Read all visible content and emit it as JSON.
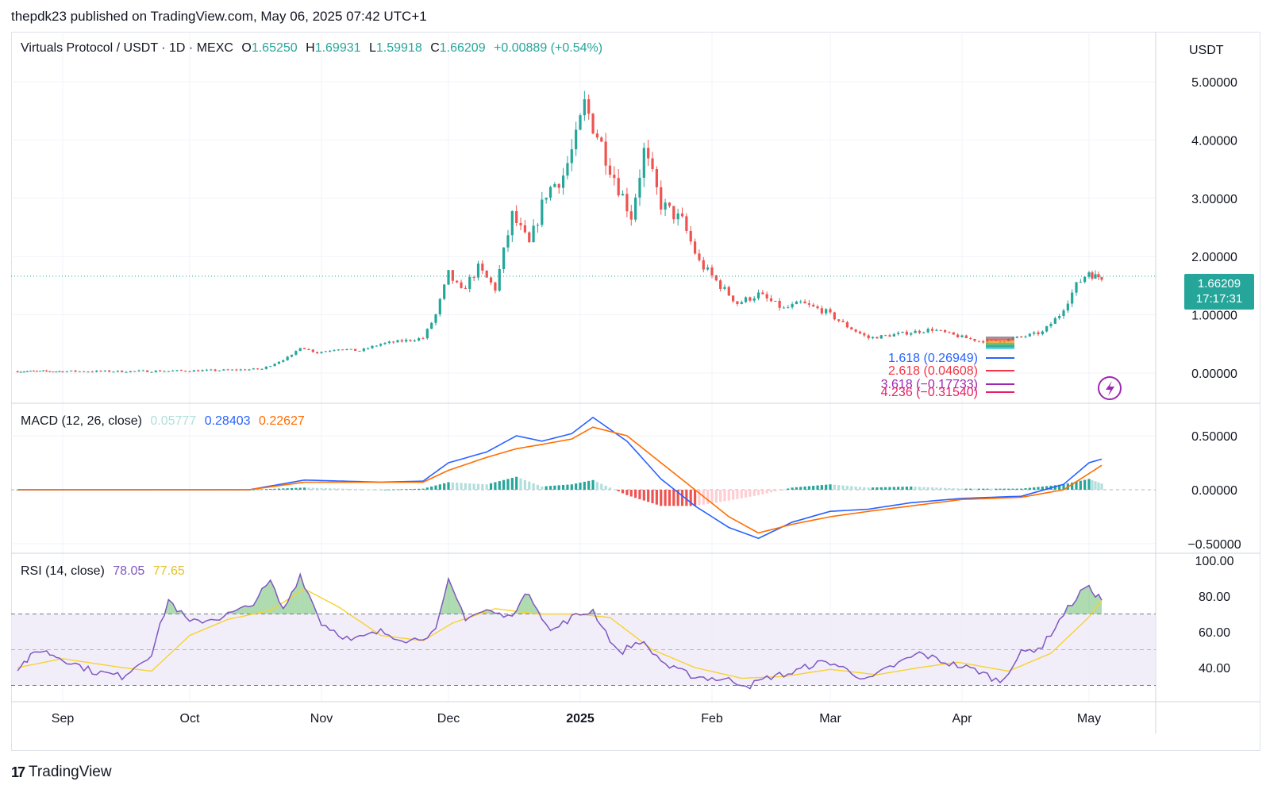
{
  "header": {
    "publisher": "thepdk23 published on TradingView.com, May 06, 2025 07:42 UTC+1"
  },
  "footer": {
    "brand": "TradingView",
    "brand_mark": "17"
  },
  "colors": {
    "up": "#26a69a",
    "down": "#ef5350",
    "macd_line": "#2962ff",
    "signal_line": "#ff6d00",
    "rsi_line": "#7e57c2",
    "rsi_ma": "#f7d22f",
    "rsi_band": "#ede7f6"
  },
  "main_legend": {
    "symbol": "Virtuals Protocol / USDT · 1D · MEXC",
    "o_label": "O",
    "o_value": "1.65250",
    "h_label": "H",
    "h_value": "1.69931",
    "l_label": "L",
    "l_value": "1.59918",
    "c_label": "C",
    "c_value": "1.66209",
    "change": "+0.00889 (+0.54%)"
  },
  "price_scale": {
    "unit": "USDT",
    "last_price": "1.66209",
    "countdown": "17:17:31"
  },
  "macd_legend": {
    "title": "MACD (12, 26, close)",
    "hist": "0.05777",
    "macd": "0.28403",
    "signal": "0.22627"
  },
  "rsi_legend": {
    "title": "RSI (14, close)",
    "rsi": "78.05",
    "ma": "77.65"
  },
  "fib_labels": [
    {
      "text": "1.618 (0.26949)",
      "color": "#2962ff"
    },
    {
      "text": "2.618 (0.04608)",
      "color": "#f23645"
    },
    {
      "text": "3.618 (−0.17733)",
      "color": "#9c27b0"
    },
    {
      "text": "4.236 (−0.31540)",
      "color": "#e91e63"
    }
  ],
  "chart_data": [
    {
      "type": "candlestick",
      "title": "Virtuals Protocol / USDT · 1D · MEXC",
      "x_tick_labels": [
        "Sep",
        "Oct",
        "Nov",
        "Dec",
        "2025",
        "Feb",
        "Mar",
        "Apr",
        "May"
      ],
      "y_tick_labels": [
        "5.00000",
        "4.00000",
        "3.00000",
        "2.00000",
        "1.00000",
        "0.00000"
      ],
      "ylim": [
        0,
        5
      ],
      "price_path": [
        [
          "2024-08-18",
          0.03
        ],
        [
          "2024-09-01",
          0.03
        ],
        [
          "2024-09-15",
          0.03
        ],
        [
          "2024-10-01",
          0.04
        ],
        [
          "2024-10-10",
          0.05
        ],
        [
          "2024-10-18",
          0.07
        ],
        [
          "2024-10-25",
          0.3
        ],
        [
          "2024-10-27",
          0.45
        ],
        [
          "2024-10-31",
          0.35
        ],
        [
          "2024-11-05",
          0.42
        ],
        [
          "2024-11-10",
          0.38
        ],
        [
          "2024-11-15",
          0.5
        ],
        [
          "2024-11-20",
          0.55
        ],
        [
          "2024-11-25",
          0.6
        ],
        [
          "2024-11-28",
          1.0
        ],
        [
          "2024-12-01",
          1.7
        ],
        [
          "2024-12-04",
          1.4
        ],
        [
          "2024-12-08",
          1.8
        ],
        [
          "2024-12-12",
          1.45
        ],
        [
          "2024-12-16",
          2.7
        ],
        [
          "2024-12-20",
          2.2
        ],
        [
          "2024-12-24",
          3.1
        ],
        [
          "2024-12-28",
          3.4
        ],
        [
          "2024-12-31",
          4.0
        ],
        [
          "2025-01-02",
          4.6
        ],
        [
          "2025-01-05",
          4.1
        ],
        [
          "2025-01-10",
          3.2
        ],
        [
          "2025-01-13",
          2.7
        ],
        [
          "2025-01-16",
          3.8
        ],
        [
          "2025-01-20",
          2.9
        ],
        [
          "2025-01-25",
          2.6
        ],
        [
          "2025-01-29",
          1.9
        ],
        [
          "2025-02-03",
          1.5
        ],
        [
          "2025-02-07",
          1.2
        ],
        [
          "2025-02-12",
          1.35
        ],
        [
          "2025-02-18",
          1.1
        ],
        [
          "2025-02-22",
          1.2
        ],
        [
          "2025-02-28",
          1.05
        ],
        [
          "2025-03-05",
          0.8
        ],
        [
          "2025-03-10",
          0.6
        ],
        [
          "2025-03-15",
          0.65
        ],
        [
          "2025-03-20",
          0.7
        ],
        [
          "2025-03-25",
          0.75
        ],
        [
          "2025-03-30",
          0.65
        ],
        [
          "2025-04-05",
          0.55
        ],
        [
          "2025-04-10",
          0.55
        ],
        [
          "2025-04-15",
          0.62
        ],
        [
          "2025-04-20",
          0.7
        ],
        [
          "2025-04-24",
          1.0
        ],
        [
          "2025-04-28",
          1.5
        ],
        [
          "2025-05-01",
          1.75
        ],
        [
          "2025-05-03",
          1.65
        ],
        [
          "2025-05-05",
          1.66
        ]
      ],
      "last_price": 1.66209
    },
    {
      "type": "line",
      "title": "MACD (12, 26, close)",
      "y_tick_labels": [
        "0.50000",
        "0.00000",
        "−0.50000"
      ],
      "ylim": [
        -0.5,
        0.5
      ],
      "series": [
        {
          "name": "MACD",
          "points": [
            [
              "2024-08-18",
              0
            ],
            [
              "2024-10-15",
              0
            ],
            [
              "2024-10-28",
              0.09
            ],
            [
              "2024-11-15",
              0.07
            ],
            [
              "2024-11-25",
              0.08
            ],
            [
              "2024-12-01",
              0.25
            ],
            [
              "2024-12-10",
              0.35
            ],
            [
              "2024-12-17",
              0.5
            ],
            [
              "2024-12-23",
              0.45
            ],
            [
              "2024-12-30",
              0.52
            ],
            [
              "2025-01-04",
              0.67
            ],
            [
              "2025-01-12",
              0.45
            ],
            [
              "2025-01-20",
              0.1
            ],
            [
              "2025-01-28",
              -0.15
            ],
            [
              "2025-02-05",
              -0.35
            ],
            [
              "2025-02-12",
              -0.45
            ],
            [
              "2025-02-20",
              -0.3
            ],
            [
              "2025-03-01",
              -0.2
            ],
            [
              "2025-03-10",
              -0.18
            ],
            [
              "2025-03-20",
              -0.12
            ],
            [
              "2025-04-01",
              -0.08
            ],
            [
              "2025-04-15",
              -0.06
            ],
            [
              "2025-04-25",
              0.05
            ],
            [
              "2025-05-01",
              0.25
            ],
            [
              "2025-05-05",
              0.28403
            ]
          ]
        },
        {
          "name": "Signal",
          "points": [
            [
              "2024-08-18",
              0
            ],
            [
              "2024-10-15",
              0
            ],
            [
              "2024-10-28",
              0.07
            ],
            [
              "2024-11-15",
              0.07
            ],
            [
              "2024-11-25",
              0.07
            ],
            [
              "2024-12-01",
              0.18
            ],
            [
              "2024-12-10",
              0.3
            ],
            [
              "2024-12-17",
              0.38
            ],
            [
              "2024-12-23",
              0.42
            ],
            [
              "2024-12-30",
              0.47
            ],
            [
              "2025-01-04",
              0.58
            ],
            [
              "2025-01-12",
              0.5
            ],
            [
              "2025-01-20",
              0.25
            ],
            [
              "2025-01-28",
              0.0
            ],
            [
              "2025-02-05",
              -0.25
            ],
            [
              "2025-02-12",
              -0.4
            ],
            [
              "2025-02-20",
              -0.32
            ],
            [
              "2025-03-01",
              -0.25
            ],
            [
              "2025-03-10",
              -0.2
            ],
            [
              "2025-03-20",
              -0.15
            ],
            [
              "2025-04-01",
              -0.09
            ],
            [
              "2025-04-15",
              -0.07
            ],
            [
              "2025-04-25",
              0.0
            ],
            [
              "2025-05-01",
              0.15
            ],
            [
              "2025-05-05",
              0.22627
            ]
          ]
        }
      ]
    },
    {
      "type": "line",
      "title": "RSI (14, close)",
      "y_tick_labels": [
        "100.00",
        "80.00",
        "60.00",
        "40.00"
      ],
      "ylim": [
        27,
        100
      ],
      "bands": [
        70,
        50,
        30
      ],
      "series": [
        {
          "name": "RSI",
          "points": [
            [
              "2024-08-18",
              40
            ],
            [
              "2024-08-25",
              50
            ],
            [
              "2024-09-01",
              45
            ],
            [
              "2024-09-08",
              38
            ],
            [
              "2024-09-15",
              35
            ],
            [
              "2024-09-22",
              48
            ],
            [
              "2024-09-26",
              78
            ],
            [
              "2024-10-01",
              65
            ],
            [
              "2024-10-08",
              68
            ],
            [
              "2024-10-15",
              74
            ],
            [
              "2024-10-20",
              88
            ],
            [
              "2024-10-23",
              72
            ],
            [
              "2024-10-27",
              92
            ],
            [
              "2024-11-01",
              65
            ],
            [
              "2024-11-08",
              55
            ],
            [
              "2024-11-15",
              60
            ],
            [
              "2024-11-22",
              55
            ],
            [
              "2024-11-28",
              60
            ],
            [
              "2024-12-01",
              88
            ],
            [
              "2024-12-05",
              68
            ],
            [
              "2024-12-10",
              72
            ],
            [
              "2024-12-15",
              68
            ],
            [
              "2024-12-20",
              82
            ],
            [
              "2024-12-25",
              60
            ],
            [
              "2024-12-30",
              68
            ],
            [
              "2025-01-04",
              72
            ],
            [
              "2025-01-10",
              48
            ],
            [
              "2025-01-15",
              55
            ],
            [
              "2025-01-22",
              40
            ],
            [
              "2025-01-28",
              35
            ],
            [
              "2025-02-05",
              33
            ],
            [
              "2025-02-10",
              30
            ],
            [
              "2025-02-15",
              35
            ],
            [
              "2025-02-20",
              37
            ],
            [
              "2025-02-25",
              42
            ],
            [
              "2025-03-01",
              43
            ],
            [
              "2025-03-10",
              33
            ],
            [
              "2025-03-15",
              40
            ],
            [
              "2025-03-22",
              48
            ],
            [
              "2025-03-28",
              43
            ],
            [
              "2025-04-05",
              38
            ],
            [
              "2025-04-10",
              32
            ],
            [
              "2025-04-15",
              48
            ],
            [
              "2025-04-20",
              52
            ],
            [
              "2025-04-25",
              70
            ],
            [
              "2025-04-30",
              85
            ],
            [
              "2025-05-02",
              83
            ],
            [
              "2025-05-05",
              78.05
            ]
          ]
        },
        {
          "name": "RSI MA",
          "points": [
            [
              "2024-08-18",
              40
            ],
            [
              "2024-09-01",
              45
            ],
            [
              "2024-09-15",
              40
            ],
            [
              "2024-09-22",
              38
            ],
            [
              "2024-10-01",
              58
            ],
            [
              "2024-10-10",
              67
            ],
            [
              "2024-10-20",
              72
            ],
            [
              "2024-10-28",
              84
            ],
            [
              "2024-11-05",
              74
            ],
            [
              "2024-11-15",
              58
            ],
            [
              "2024-11-25",
              55
            ],
            [
              "2024-12-02",
              65
            ],
            [
              "2024-12-12",
              73
            ],
            [
              "2024-12-22",
              70
            ],
            [
              "2024-12-31",
              70
            ],
            [
              "2025-01-08",
              68
            ],
            [
              "2025-01-18",
              50
            ],
            [
              "2025-01-28",
              40
            ],
            [
              "2025-02-08",
              34
            ],
            [
              "2025-02-18",
              35
            ],
            [
              "2025-03-01",
              39
            ],
            [
              "2025-03-12",
              36
            ],
            [
              "2025-03-22",
              40
            ],
            [
              "2025-03-31",
              43
            ],
            [
              "2025-04-12",
              38
            ],
            [
              "2025-04-22",
              48
            ],
            [
              "2025-04-30",
              66
            ],
            [
              "2025-05-05",
              77.65
            ]
          ]
        }
      ]
    }
  ]
}
